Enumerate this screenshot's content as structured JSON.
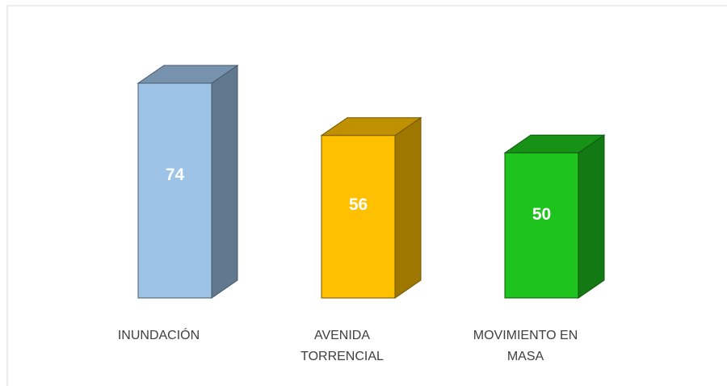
{
  "chart_data": {
    "type": "bar3d",
    "categories": [
      "INUNDACIÓN",
      "AVENIDA TORRENCIAL",
      "MOVIMIENTO EN MASA"
    ],
    "values": [
      74,
      56,
      50
    ],
    "colors": [
      "#9dc3e6",
      "#ffc000",
      "#1ec31e"
    ]
  }
}
